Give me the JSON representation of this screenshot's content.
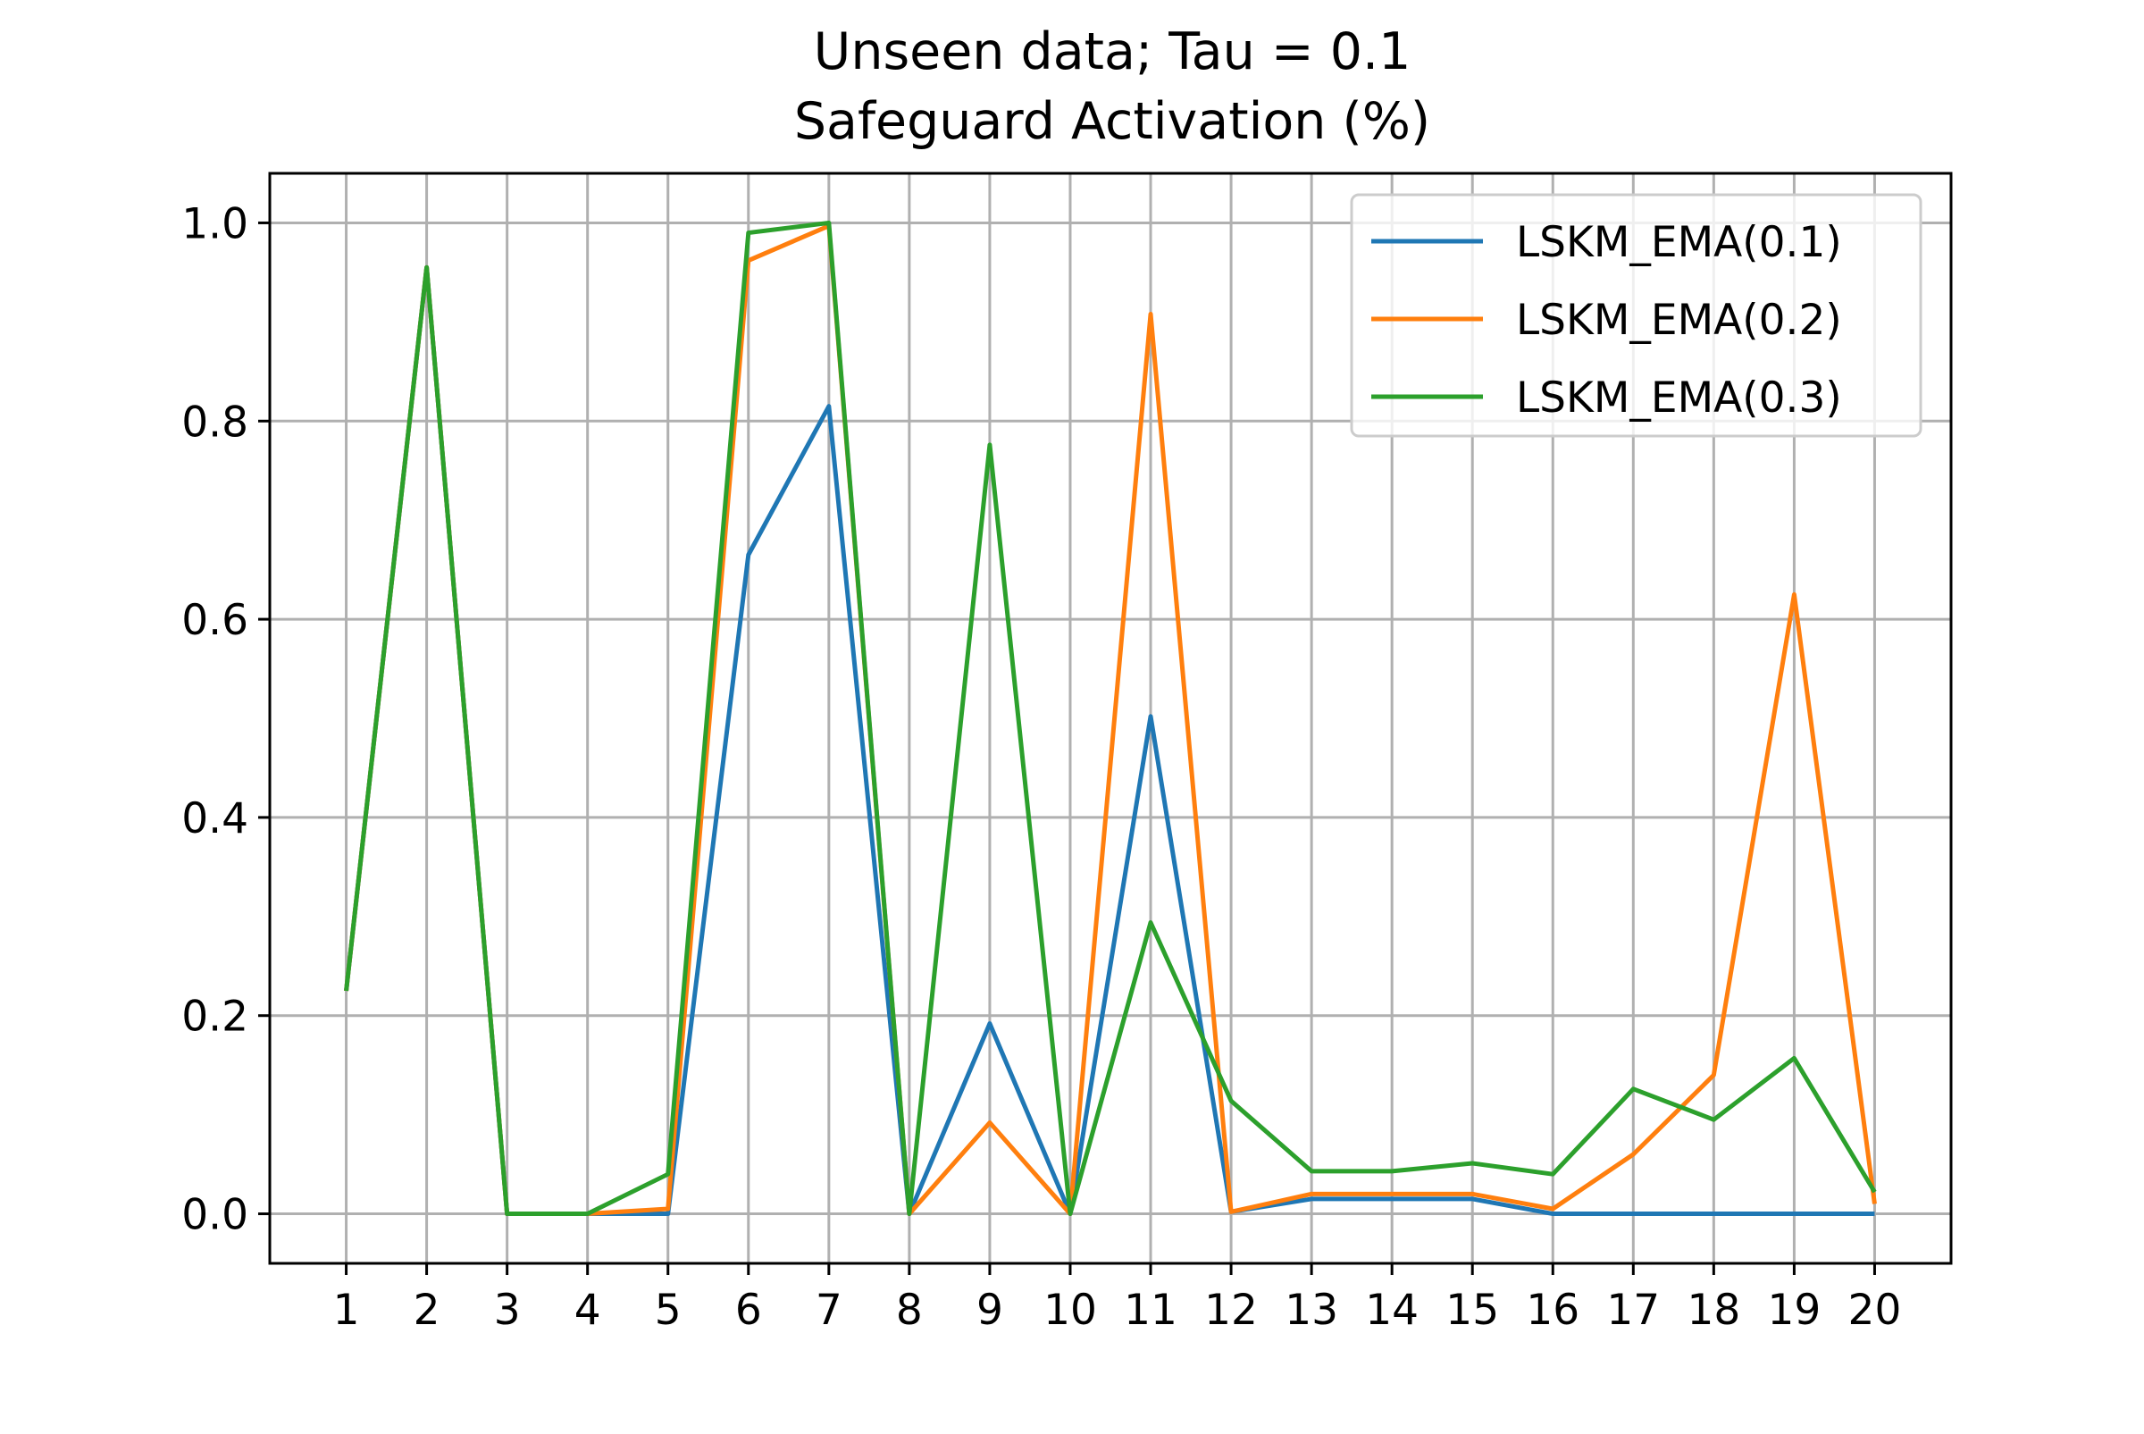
{
  "chart_data": {
    "type": "line",
    "title_line1": "Unseen data; Tau = 0.1",
    "title_line2": "Safeguard Activation (%)",
    "xlabel": "",
    "ylabel": "",
    "x": [
      1,
      2,
      3,
      4,
      5,
      6,
      7,
      8,
      9,
      10,
      11,
      12,
      13,
      14,
      15,
      16,
      17,
      18,
      19,
      20
    ],
    "x_tick_labels": [
      "1",
      "2",
      "3",
      "4",
      "5",
      "6",
      "7",
      "8",
      "9",
      "10",
      "11",
      "12",
      "13",
      "14",
      "15",
      "16",
      "17",
      "18",
      "19",
      "20"
    ],
    "y_ticks": [
      0.0,
      0.2,
      0.4,
      0.6,
      0.8,
      1.0
    ],
    "y_tick_labels": [
      "0.0",
      "0.2",
      "0.4",
      "0.6",
      "0.8",
      "1.0"
    ],
    "xlim": [
      0.05,
      20.95
    ],
    "ylim": [
      -0.05,
      1.05
    ],
    "grid": true,
    "legend_position": "top-right",
    "series": [
      {
        "name": "LSKM_EMA(0.1)",
        "color": "#1f77b4",
        "values": [
          0.225,
          0.955,
          0.0,
          0.0,
          0.0,
          0.665,
          0.815,
          0.0,
          0.192,
          0.0,
          0.502,
          0.002,
          0.015,
          0.015,
          0.015,
          0.0,
          0.0,
          0.0,
          0.0,
          0.0
        ]
      },
      {
        "name": "LSKM_EMA(0.2)",
        "color": "#ff7f0e",
        "values": [
          0.225,
          0.955,
          0.0,
          0.0,
          0.005,
          0.962,
          0.997,
          0.0,
          0.092,
          0.0,
          0.908,
          0.002,
          0.02,
          0.02,
          0.02,
          0.005,
          0.06,
          0.14,
          0.625,
          0.01
        ]
      },
      {
        "name": "LSKM_EMA(0.3)",
        "color": "#2ca02c",
        "values": [
          0.225,
          0.955,
          0.0,
          0.0,
          0.04,
          0.99,
          1.0,
          0.0,
          0.776,
          0.0,
          0.294,
          0.114,
          0.043,
          0.043,
          0.051,
          0.04,
          0.126,
          0.095,
          0.157,
          0.022
        ]
      }
    ]
  }
}
